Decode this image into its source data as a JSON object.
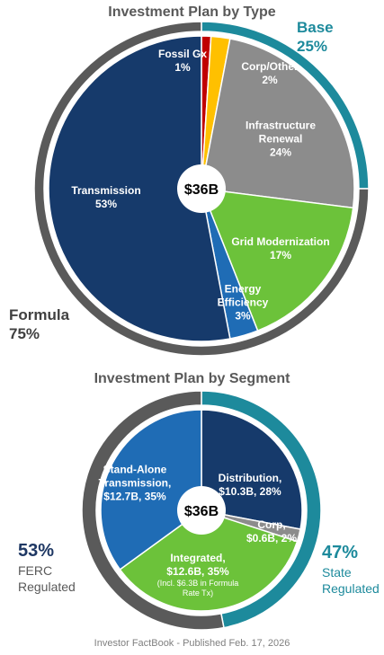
{
  "chart_data": [
    {
      "type": "pie",
      "title": "Investment Plan by Type",
      "center_label": "$36B",
      "categories": [
        "Fossil Gx",
        "Corp/Other",
        "Infrastructure Renewal",
        "Grid Modernization",
        "Energy Efficiency",
        "Transmission"
      ],
      "values": [
        1,
        2,
        24,
        17,
        3,
        53
      ],
      "value_labels": [
        "1%",
        "2%",
        "24%",
        "17%",
        "3%",
        "53%"
      ],
      "colors": [
        "#c00000",
        "#ffc000",
        "#8c8c8c",
        "#6cc23a",
        "#1f6cb5",
        "#163a6b"
      ],
      "ring": {
        "categories": [
          "Base",
          "Formula"
        ],
        "values": [
          25,
          75
        ],
        "value_labels": [
          "25%",
          "75%"
        ],
        "colors": [
          "#1d8a9c",
          "#5a5a5a"
        ]
      }
    },
    {
      "type": "pie",
      "title": "Investment Plan by Segment",
      "center_label": "$36B",
      "categories": [
        "Distribution,",
        "Corp,",
        "Integrated,",
        "Stand-Alone Transmission,"
      ],
      "values": [
        28,
        2,
        35,
        35
      ],
      "value_labels": [
        "$10.3B, 28%",
        "$0.6B, 2%",
        "$12.6B, 35%",
        "$12.7B, 35%"
      ],
      "annotation": "(Incl. $6.3B in Formula Rate Tx)",
      "colors": [
        "#163a6b",
        "#8c8c8c",
        "#6cc23a",
        "#1f6cb5"
      ],
      "ring": {
        "categories": [
          "State Regulated",
          "FERC Regulated"
        ],
        "values": [
          47,
          53
        ],
        "value_labels": [
          "47%",
          "53%"
        ],
        "colors": [
          "#1d8a9c",
          "#5a5a5a"
        ]
      }
    }
  ],
  "footer": "Investor FactBook - Published Feb. 17, 2026"
}
